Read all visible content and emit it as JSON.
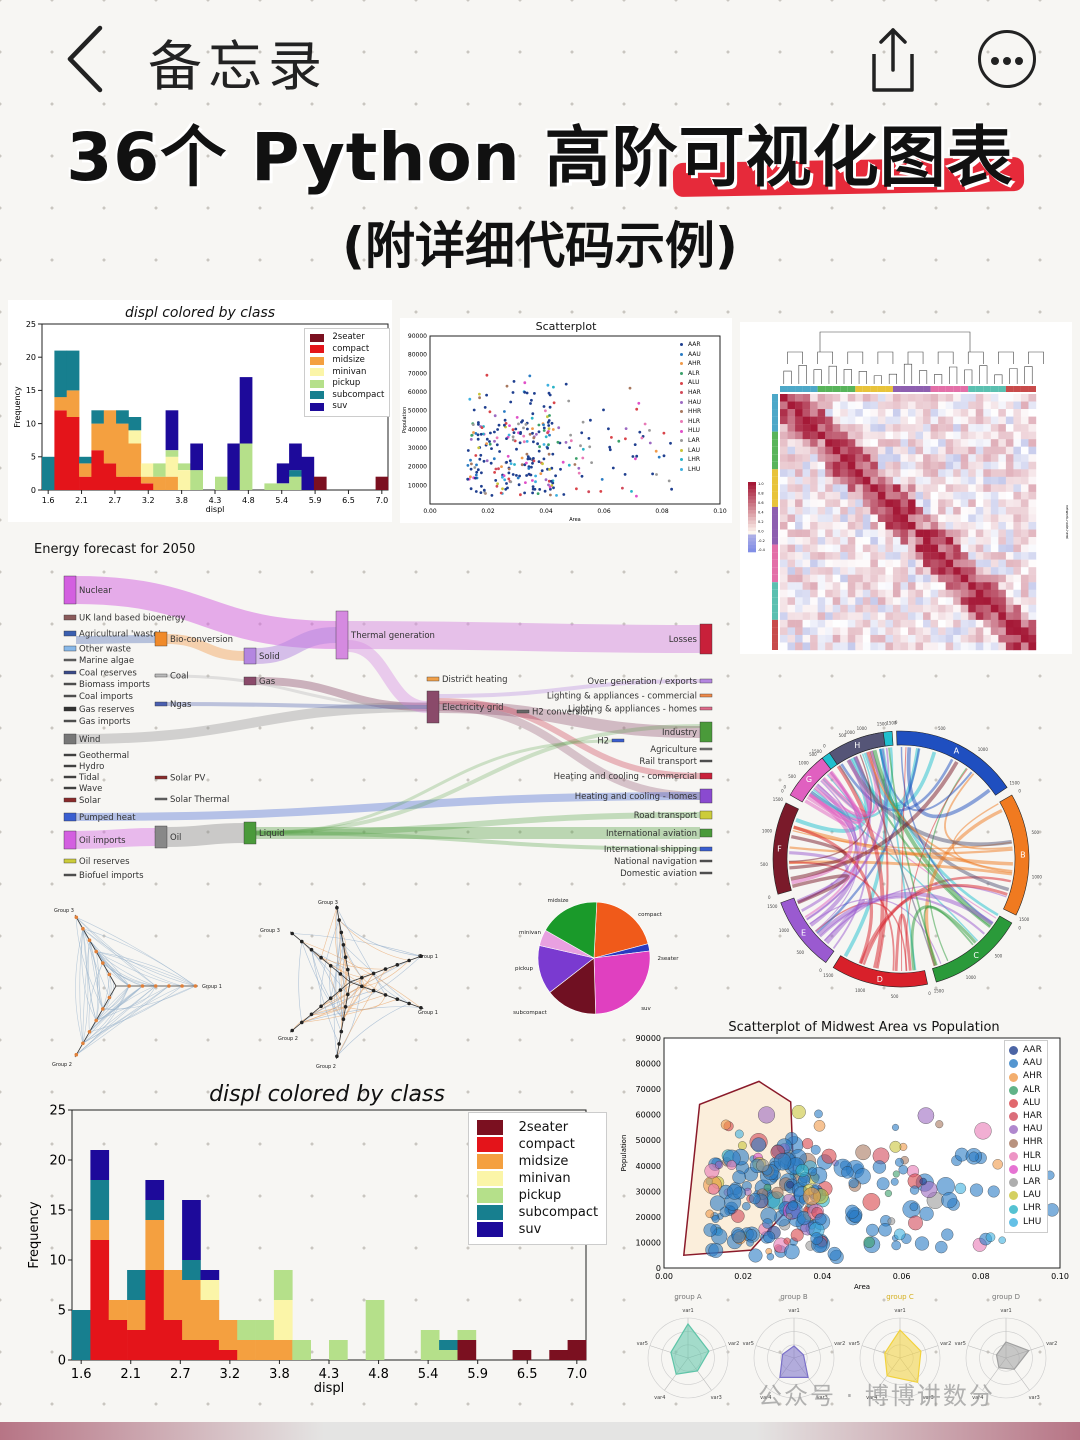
{
  "nav": {
    "title": "备忘录"
  },
  "headline": {
    "prefix": "36个 Python 高阶",
    "highlight": "可视化图表",
    "subtitle": "(附详细代码示例)"
  },
  "watermark": "公众号 · 博博讲数分",
  "colors": {
    "accent": "#e62a3a",
    "classes": [
      "#7b1020",
      "#e4141a",
      "#f4a040",
      "#fbf5a8",
      "#b5e08a",
      "#177f8f",
      "#1d0a9a"
    ]
  },
  "chart_data": [
    {
      "id": "hist-small",
      "type": "bar",
      "stacked": true,
      "title": "displ colored by class",
      "xlabel": "displ",
      "ylabel": "Frequency",
      "ylim": [
        0,
        25
      ],
      "yticks": [
        0,
        5,
        10,
        15,
        20,
        25
      ],
      "xticks": [
        "1.6",
        "2.1",
        "2.7",
        "3.2",
        "3.8",
        "4.3",
        "4.8",
        "5.4",
        "5.9",
        "6.5",
        "7.0"
      ],
      "legend": "top-right",
      "categories": [
        "1.6",
        "1.8",
        "2.0",
        "2.2",
        "2.4",
        "2.6",
        "2.8",
        "3.0",
        "3.2",
        "3.4",
        "3.6",
        "3.8",
        "4.0",
        "4.2",
        "4.4",
        "4.6",
        "4.8",
        "5.0",
        "5.2",
        "5.4",
        "5.6",
        "5.8",
        "6.0",
        "6.2",
        "6.4",
        "6.6",
        "6.8",
        "7.0"
      ],
      "series": [
        {
          "name": "2seater",
          "values": [
            0,
            0,
            0,
            0,
            0,
            0,
            0,
            0,
            0,
            0,
            0,
            0,
            0,
            0,
            0,
            0,
            0,
            0,
            0,
            0,
            0,
            0,
            2,
            0,
            0,
            0,
            0,
            2
          ]
        },
        {
          "name": "compact",
          "values": [
            0,
            12,
            11,
            2,
            6,
            4,
            2,
            2,
            1,
            0,
            0,
            0,
            0,
            0,
            0,
            0,
            0,
            0,
            0,
            0,
            0,
            0,
            0,
            0,
            0,
            0,
            0,
            0
          ]
        },
        {
          "name": "midsize",
          "values": [
            0,
            2,
            4,
            2,
            4,
            8,
            8,
            5,
            1,
            2,
            2,
            0,
            0,
            0,
            0,
            0,
            0,
            0,
            0,
            0,
            0,
            0,
            0,
            0,
            0,
            0,
            0,
            0
          ]
        },
        {
          "name": "minivan",
          "values": [
            0,
            0,
            0,
            0,
            0,
            0,
            0,
            2,
            2,
            0,
            3,
            3,
            0,
            0,
            0,
            0,
            0,
            0,
            0,
            0,
            0,
            0,
            0,
            0,
            0,
            0,
            0,
            0
          ]
        },
        {
          "name": "pickup",
          "values": [
            0,
            0,
            0,
            0,
            0,
            0,
            0,
            0,
            0,
            2,
            1,
            1,
            3,
            0,
            2,
            0,
            7,
            0,
            1,
            1,
            2,
            0,
            0,
            0,
            0,
            0,
            0,
            0
          ]
        },
        {
          "name": "subcompact",
          "values": [
            5,
            7,
            6,
            1,
            2,
            0,
            2,
            2,
            0,
            0,
            0,
            0,
            0,
            0,
            0,
            0,
            0,
            0,
            0,
            0,
            1,
            0,
            0,
            0,
            0,
            0,
            0,
            0
          ]
        },
        {
          "name": "suv",
          "values": [
            0,
            0,
            0,
            0,
            0,
            0,
            0,
            0,
            0,
            0,
            6,
            0,
            4,
            0,
            0,
            7,
            10,
            0,
            0,
            3,
            4,
            5,
            0,
            0,
            0,
            0,
            0,
            0
          ]
        }
      ]
    },
    {
      "id": "scatter-small",
      "type": "scatter",
      "title": "Scatterplot",
      "xlabel": "Area",
      "ylabel": "Population",
      "xlim": [
        0,
        0.1
      ],
      "ylim": [
        0,
        90000
      ],
      "xticks": [
        "0.00",
        "0.02",
        "0.04",
        "0.06",
        "0.08",
        "0.10"
      ],
      "yticks": [
        "10000",
        "20000",
        "30000",
        "40000",
        "50000",
        "60000",
        "70000",
        "80000",
        "90000"
      ],
      "legend": [
        "AAR",
        "AAU",
        "AHR",
        "ALR",
        "ALU",
        "HAR",
        "HAU",
        "HHR",
        "HLR",
        "HLU",
        "LAR",
        "LAU",
        "LHR",
        "LHU"
      ]
    },
    {
      "id": "corr-heatmap",
      "type": "heatmap",
      "xlabel": "network-node-hemi",
      "ylabel": "network-node-hemi",
      "colorbar_ticks": [
        "1.0",
        "0.8",
        "0.6",
        "0.4",
        "0.2",
        "0.0",
        "-0.2",
        "-0.4"
      ]
    },
    {
      "id": "sankey",
      "type": "sankey",
      "title": "Energy forecast for 2050",
      "nodes": [
        "Nuclear",
        "UK land based bioenergy",
        "Agricultural 'waste'",
        "Other waste",
        "Marine algae",
        "Coal reserves",
        "Biomass imports",
        "Coal imports",
        "Gas reserves",
        "Gas imports",
        "Wind",
        "Geothermal",
        "Hydro",
        "Tidal",
        "Wave",
        "Solar",
        "Pumped heat",
        "Oil imports",
        "Oil reserves",
        "Biofuel imports",
        "Bio-conversion",
        "Coal",
        "Ngas",
        "Solar PV",
        "Solar Thermal",
        "Oil",
        "Solid",
        "Gas",
        "Liquid",
        "Thermal generation",
        "District heating",
        "Electricity grid",
        "H2 conversion",
        "H2",
        "Losses",
        "Over generation / exports",
        "Lighting & appliances - commercial",
        "Lighting & appliances - homes",
        "Industry",
        "Agriculture",
        "Rail transport",
        "Heating and cooling - commercial",
        "Heating and cooling - homes",
        "Road transport",
        "International aviation",
        "International shipping",
        "National navigation",
        "Domestic aviation"
      ]
    },
    {
      "id": "chord",
      "type": "chord",
      "groups": [
        "A",
        "B",
        "C",
        "D",
        "E",
        "F",
        "G",
        "H"
      ]
    },
    {
      "id": "hive-1",
      "type": "hive",
      "groups": [
        "Group 1",
        "Group 2",
        "Group 3"
      ]
    },
    {
      "id": "hive-2",
      "type": "hive",
      "groups": [
        "Group 1",
        "Group 1",
        "Group 2",
        "Group 2",
        "Group 3",
        "Group 3"
      ]
    },
    {
      "id": "pie",
      "type": "pie",
      "categories": [
        "compact",
        "2seater",
        "suv",
        "subcompact",
        "pickup",
        "minivan",
        "midsize"
      ],
      "values": [
        47,
        5,
        62,
        35,
        33,
        11,
        41
      ]
    },
    {
      "id": "hist-large",
      "type": "bar",
      "stacked": true,
      "title": "displ colored by class",
      "xlabel": "displ",
      "ylabel": "Frequency",
      "ylim": [
        0,
        25
      ],
      "yticks": [
        0,
        5,
        10,
        15,
        20,
        25
      ],
      "xticks": [
        "1.6",
        "2.1",
        "2.7",
        "3.2",
        "3.8",
        "4.3",
        "4.8",
        "5.4",
        "5.9",
        "6.5",
        "7.0"
      ],
      "legend": "top-right",
      "categories": [
        "1.6",
        "1.8",
        "2.0",
        "2.2",
        "2.4",
        "2.6",
        "2.8",
        "3.0",
        "3.2",
        "3.4",
        "3.6",
        "3.8",
        "4.0",
        "4.2",
        "4.4",
        "4.6",
        "4.8",
        "5.0",
        "5.2",
        "5.4",
        "5.6",
        "5.8",
        "6.0",
        "6.2",
        "6.4",
        "6.6",
        "6.8",
        "7.0"
      ],
      "series": [
        {
          "name": "2seater",
          "values": [
            0,
            0,
            0,
            0,
            0,
            0,
            0,
            0,
            0,
            0,
            0,
            0,
            0,
            0,
            0,
            0,
            0,
            0,
            0,
            0,
            0,
            2,
            0,
            0,
            1,
            0,
            1,
            2
          ]
        },
        {
          "name": "compact",
          "values": [
            0,
            12,
            4,
            3,
            9,
            4,
            2,
            2,
            1,
            0,
            0,
            0,
            0,
            0,
            0,
            0,
            0,
            0,
            0,
            0,
            0,
            0,
            0,
            0,
            0,
            0,
            0,
            0
          ]
        },
        {
          "name": "midsize",
          "values": [
            0,
            2,
            2,
            3,
            5,
            5,
            6,
            4,
            3,
            2,
            2,
            2,
            0,
            0,
            0,
            0,
            0,
            0,
            0,
            0,
            0,
            0,
            0,
            0,
            0,
            0,
            0,
            0
          ]
        },
        {
          "name": "minivan",
          "values": [
            0,
            0,
            0,
            0,
            0,
            0,
            0,
            2,
            0,
            0,
            0,
            4,
            0,
            0,
            0,
            0,
            0,
            0,
            0,
            0,
            0,
            0,
            0,
            0,
            0,
            0,
            0,
            0
          ]
        },
        {
          "name": "pickup",
          "values": [
            0,
            0,
            0,
            0,
            0,
            0,
            0,
            0,
            0,
            2,
            2,
            3,
            2,
            0,
            2,
            0,
            6,
            0,
            0,
            3,
            1,
            1,
            0,
            0,
            0,
            0,
            0,
            0
          ]
        },
        {
          "name": "subcompact",
          "values": [
            5,
            4,
            0,
            3,
            2,
            0,
            2,
            0,
            0,
            0,
            0,
            0,
            0,
            0,
            0,
            0,
            0,
            0,
            0,
            0,
            1,
            0,
            0,
            0,
            0,
            0,
            0,
            0
          ]
        },
        {
          "name": "suv",
          "values": [
            0,
            3,
            0,
            0,
            2,
            0,
            6,
            1,
            0,
            0,
            0,
            0,
            0,
            0,
            0,
            0,
            0,
            0,
            0,
            0,
            0,
            0,
            0,
            0,
            0,
            0,
            0,
            0
          ]
        }
      ]
    },
    {
      "id": "scatter-encircle",
      "type": "scatter",
      "title": "Scatterplot of Midwest Area vs Population",
      "xlabel": "Area",
      "ylabel": "Population",
      "xlim": [
        0,
        0.1
      ],
      "ylim": [
        0,
        90000
      ],
      "xticks": [
        "0.00",
        "0.02",
        "0.04",
        "0.06",
        "0.08",
        "0.10"
      ],
      "yticks": [
        "0",
        "10000",
        "20000",
        "30000",
        "40000",
        "50000",
        "60000",
        "70000",
        "80000",
        "90000"
      ],
      "legend": [
        "AAR",
        "AAU",
        "AHR",
        "ALR",
        "ALU",
        "HAR",
        "HAU",
        "HHR",
        "HLR",
        "HLU",
        "LAR",
        "LAU",
        "LHR",
        "LHU"
      ]
    },
    {
      "id": "radar",
      "type": "radar",
      "groups": [
        "group A",
        "group B",
        "group C",
        "group D"
      ],
      "variables": [
        "var1",
        "var2",
        "var3",
        "var4",
        "var5"
      ],
      "colors": [
        "#5fc4a8",
        "#7a70c8",
        "#f2d23c",
        "#a0a0a0"
      ]
    }
  ]
}
